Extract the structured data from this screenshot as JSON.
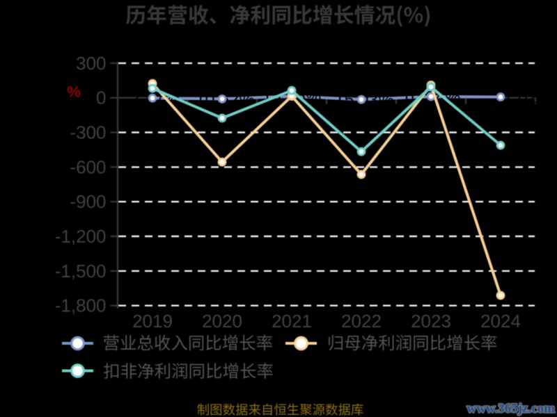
{
  "background": "#000000",
  "chart_data": {
    "type": "line",
    "title": "历年营收、净利同比增长情况(%)",
    "ylabel": "%",
    "categories": [
      "2019",
      "2020",
      "2021",
      "2022",
      "2023",
      "2024"
    ],
    "yticks": [
      300,
      0,
      -300,
      -600,
      -900,
      -1200,
      -1500,
      -1800
    ],
    "ytick_labels": [
      "300",
      "0",
      "-300",
      "-600",
      "-900",
      "-1,200",
      "-1,500",
      "-1,800"
    ],
    "ylim": [
      -1800,
      300
    ],
    "grid": "horizontal-dashed-white",
    "legend_position": "bottom-left",
    "series": [
      {
        "name": "营业总收入同比增长率",
        "color": "#7f93c9",
        "values": [
          -2.47,
          -10.52,
          13.96,
          -15.03,
          10.84,
          7.02
        ]
      },
      {
        "name": "归母净利润同比增长率",
        "color": "#f6d096",
        "values": [
          123.96,
          -556.24,
          14.3,
          -663.81,
          110.04,
          -1711.59
        ]
      },
      {
        "name": "扣非净利润同比增长率",
        "color": "#70cdc4",
        "values": [
          81.95,
          -176.6,
          63.4,
          -466.23,
          94.71,
          -410.93
        ]
      }
    ]
  },
  "annotations": {
    "source_note": "制图数据来自恒生聚源数据库",
    "watermark": "www.365jz.com"
  },
  "colors": {
    "axis": "#353535",
    "grid": "#f0f0f0",
    "tick_label": "#414141",
    "title": "#383838",
    "legend_text": "#4f4f4f",
    "ylabel": "#c80000",
    "source_note": "#8f6e14",
    "watermark": "#1a4a94",
    "watermark_outline": "#8a8a8a",
    "data_label": "#000000",
    "marker_fill": "#ffffff"
  }
}
